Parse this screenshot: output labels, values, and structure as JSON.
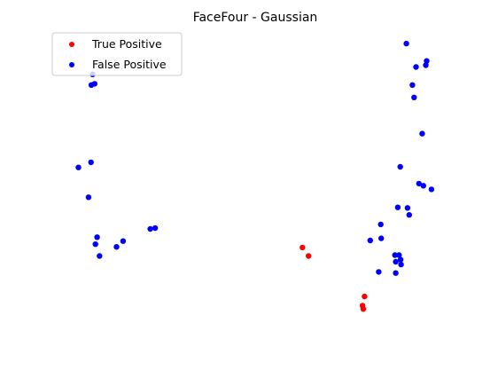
{
  "chart_data": {
    "type": "scatter",
    "title": "FaceFour - Gaussian",
    "xlabel": "",
    "ylabel": "",
    "axes_visible": false,
    "grid": false,
    "legend_position": "upper-left",
    "xlim": [
      0,
      100
    ],
    "ylim": [
      0,
      100
    ],
    "series": [
      {
        "name": "True Positive",
        "color": "#ff0000",
        "points": [
          {
            "x": 58.8,
            "y": 31.8
          },
          {
            "x": 60.3,
            "y": 29.0
          },
          {
            "x": 74.1,
            "y": 15.7
          },
          {
            "x": 73.6,
            "y": 12.7
          },
          {
            "x": 73.8,
            "y": 11.6
          }
        ]
      },
      {
        "name": "False Positive",
        "color": "#0000ff",
        "points": [
          {
            "x": 7.1,
            "y": 88.7
          },
          {
            "x": 7.6,
            "y": 85.6
          },
          {
            "x": 6.8,
            "y": 85.2
          },
          {
            "x": 6.7,
            "y": 59.8
          },
          {
            "x": 3.6,
            "y": 58.1
          },
          {
            "x": 6.1,
            "y": 48.3
          },
          {
            "x": 22.5,
            "y": 38.2
          },
          {
            "x": 21.3,
            "y": 37.9
          },
          {
            "x": 8.2,
            "y": 35.2
          },
          {
            "x": 7.8,
            "y": 32.9
          },
          {
            "x": 14.6,
            "y": 33.9
          },
          {
            "x": 13.0,
            "y": 32.0
          },
          {
            "x": 8.8,
            "y": 29.0
          },
          {
            "x": 84.4,
            "y": 98.8
          },
          {
            "x": 89.4,
            "y": 93.1
          },
          {
            "x": 89.2,
            "y": 91.7
          },
          {
            "x": 86.8,
            "y": 91.1
          },
          {
            "x": 85.9,
            "y": 85.2
          },
          {
            "x": 86.3,
            "y": 81.1
          },
          {
            "x": 88.3,
            "y": 69.2
          },
          {
            "x": 82.9,
            "y": 58.3
          },
          {
            "x": 87.5,
            "y": 52.8
          },
          {
            "x": 88.6,
            "y": 52.1
          },
          {
            "x": 90.6,
            "y": 50.9
          },
          {
            "x": 82.3,
            "y": 45.0
          },
          {
            "x": 84.7,
            "y": 44.8
          },
          {
            "x": 85.1,
            "y": 42.5
          },
          {
            "x": 78.1,
            "y": 39.4
          },
          {
            "x": 78.2,
            "y": 34.8
          },
          {
            "x": 75.5,
            "y": 34.1
          },
          {
            "x": 81.6,
            "y": 29.3
          },
          {
            "x": 82.6,
            "y": 29.3
          },
          {
            "x": 83.0,
            "y": 27.8
          },
          {
            "x": 81.8,
            "y": 27.1
          },
          {
            "x": 83.1,
            "y": 26.2
          },
          {
            "x": 77.6,
            "y": 23.8
          },
          {
            "x": 81.8,
            "y": 23.4
          }
        ]
      }
    ]
  }
}
